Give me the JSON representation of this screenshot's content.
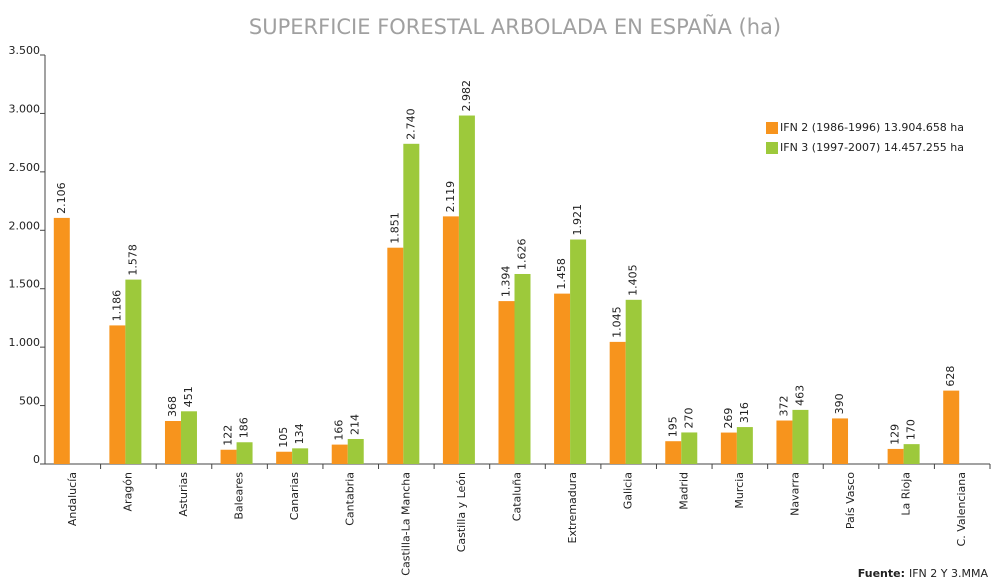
{
  "chart_data": {
    "type": "bar",
    "title": "SUPERFICIE FORESTAL ARBOLADA EN ESPAÑA (ha)",
    "categories": [
      "Andalucía",
      "Aragón",
      "Asturias",
      "Baleares",
      "Canarias",
      "Cantabria",
      "Castilla-La Mancha",
      "Castilla y León",
      "Cataluña",
      "Extremadura",
      "Galicia",
      "Madrid",
      "Murcia",
      "Navarra",
      "País Vasco",
      "La Rioja",
      "C. Valenciana"
    ],
    "series": [
      {
        "name": "IFN 2 (1986-1996) 13.904.658 ha",
        "color": "#f7941d",
        "values": [
          2106,
          1186,
          368,
          122,
          105,
          166,
          1851,
          2119,
          1394,
          1458,
          1045,
          195,
          269,
          372,
          390,
          129,
          628
        ],
        "value_labels": [
          "2.106",
          "1.186",
          "368",
          "122",
          "105",
          "166",
          "1.851",
          "2.119",
          "1.394",
          "1.458",
          "1.045",
          "195",
          "269",
          "372",
          "390",
          "129",
          "628"
        ]
      },
      {
        "name": "IFN 3 (1997-2007) 14.457.255 ha",
        "color": "#9dc93b",
        "values": [
          null,
          1578,
          451,
          186,
          134,
          214,
          2740,
          2982,
          1626,
          1921,
          1405,
          270,
          316,
          463,
          null,
          170,
          null
        ],
        "value_labels": [
          null,
          "1.578",
          "451",
          "186",
          "134",
          "214",
          "2.740",
          "2.982",
          "1.626",
          "1.921",
          "1.405",
          "270",
          "316",
          "463",
          null,
          "170",
          null
        ]
      }
    ],
    "ylim": [
      0,
      3500
    ],
    "yticks": [
      0,
      500,
      {
        "value": 1000,
        "label": "1.000"
      },
      {
        "value": 1500,
        "label": "1.500"
      },
      {
        "value": 2000,
        "label": "2.000"
      },
      {
        "value": 2500,
        "label": "2.500"
      },
      {
        "value": 3000,
        "label": "3.000"
      },
      {
        "value": 3500,
        "label": "3.500"
      }
    ],
    "legend": "upper right",
    "source_label": "Fuente:",
    "source": "IFN 2 Y 3.MMA"
  }
}
